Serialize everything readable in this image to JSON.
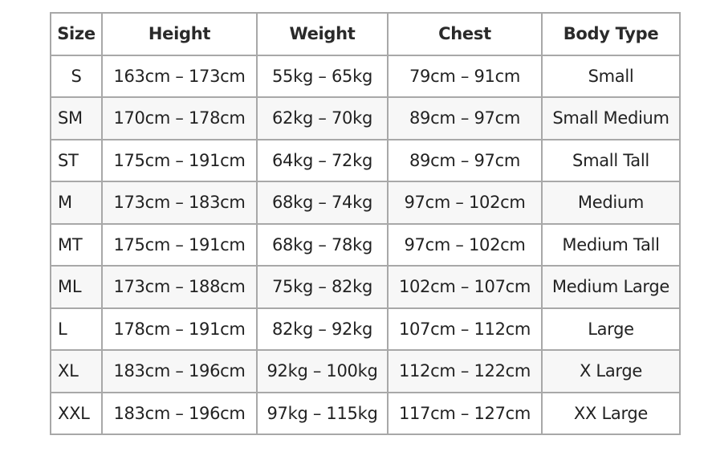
{
  "headers": [
    "Size",
    "Height",
    "Weight",
    "Chest",
    "Body Type"
  ],
  "rows": [
    [
      "S",
      "163cm – 173cm",
      "55kg – 65kg",
      "79cm – 91cm",
      "Small"
    ],
    [
      "SM",
      "170cm – 178cm",
      "62kg – 70kg",
      "89cm – 97cm",
      "Small Medium"
    ],
    [
      "ST",
      "175cm – 191cm",
      "64kg – 72kg",
      "89cm – 97cm",
      "Small Tall"
    ],
    [
      "M",
      "173cm – 183cm",
      "68kg – 74kg",
      "97cm – 102cm",
      "Medium"
    ],
    [
      "MT",
      "175cm – 191cm",
      "68kg – 78kg",
      "97cm – 102cm",
      "Medium Tall"
    ],
    [
      "ML",
      "173cm – 188cm",
      "75kg – 82kg",
      "102cm – 107cm",
      "Medium Large"
    ],
    [
      "L",
      "178cm – 191cm",
      "82kg – 92kg",
      "107cm – 112cm",
      "Large"
    ],
    [
      "XL",
      "183cm – 196cm",
      "92kg – 100kg",
      "112cm – 122cm",
      "X Large"
    ],
    [
      "XXL",
      "183cm – 196cm",
      "97kg – 115kg",
      "117cm – 127cm",
      "XX Large"
    ]
  ]
}
